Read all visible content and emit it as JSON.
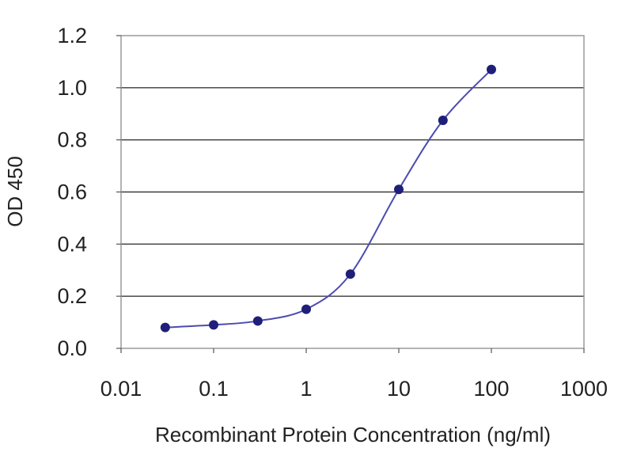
{
  "chart_data": {
    "type": "line",
    "title": "",
    "xlabel": "Recombinant Protein Concentration (ng/ml)",
    "ylabel": "OD 450",
    "x_scale": "log",
    "xlim": [
      0.01,
      1000
    ],
    "ylim": [
      0,
      1.2
    ],
    "x_ticks": [
      0.01,
      0.1,
      1,
      10,
      100,
      1000
    ],
    "x_tick_labels": [
      "0.01",
      "0.1",
      "1",
      "10",
      "100",
      "1000"
    ],
    "y_ticks": [
      0,
      0.2,
      0.4,
      0.6,
      0.8,
      1.0,
      1.2
    ],
    "y_tick_labels": [
      "0.0",
      "0.2",
      "0.4",
      "0.6",
      "0.8",
      "1.0",
      "1.2"
    ],
    "grid": "horizontal",
    "legend": "none",
    "series": [
      {
        "x": [
          0.03,
          0.1,
          0.3,
          1,
          3,
          10,
          30,
          100
        ],
        "y": [
          0.08,
          0.09,
          0.105,
          0.15,
          0.285,
          0.61,
          0.875,
          1.07
        ],
        "color": "#1f1f7a",
        "line_color": "#4b4bb0"
      }
    ]
  }
}
